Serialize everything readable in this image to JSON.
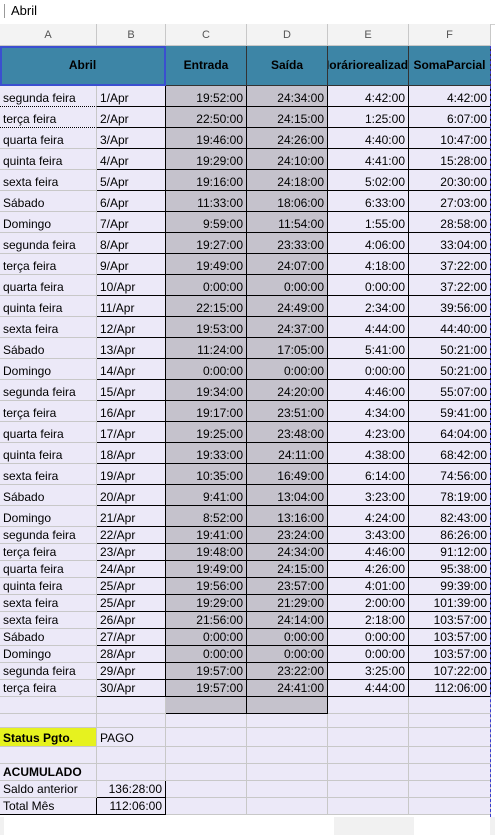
{
  "formula_bar": {
    "value": "Abril"
  },
  "column_headers": [
    "A",
    "B",
    "C",
    "D",
    "E",
    "F"
  ],
  "header": {
    "month": "Abril",
    "entrada": "Entrada",
    "saida": "Saída",
    "horario_line1": "Horário",
    "horario_line2": "realizado",
    "soma_line1": "Soma",
    "soma_line2": "Parcial"
  },
  "rows": [
    [
      "segunda feira",
      "1/Apr",
      "19:52:00",
      "24:34:00",
      "4:42:00",
      "4:42:00"
    ],
    [
      "terça feira",
      "2/Apr",
      "22:50:00",
      "24:15:00",
      "1:25:00",
      "6:07:00"
    ],
    [
      "quarta feira",
      "3/Apr",
      "19:46:00",
      "24:26:00",
      "4:40:00",
      "10:47:00"
    ],
    [
      "quinta feira",
      "4/Apr",
      "19:29:00",
      "24:10:00",
      "4:41:00",
      "15:28:00"
    ],
    [
      "sexta feira",
      "5/Apr",
      "19:16:00",
      "24:18:00",
      "5:02:00",
      "20:30:00"
    ],
    [
      "Sábado",
      "6/Apr",
      "11:33:00",
      "18:06:00",
      "6:33:00",
      "27:03:00"
    ],
    [
      "Domingo",
      "7/Apr",
      "9:59:00",
      "11:54:00",
      "1:55:00",
      "28:58:00"
    ],
    [
      "segunda feira",
      "8/Apr",
      "19:27:00",
      "23:33:00",
      "4:06:00",
      "33:04:00"
    ],
    [
      "terça feira",
      "9/Apr",
      "19:49:00",
      "24:07:00",
      "4:18:00",
      "37:22:00"
    ],
    [
      "quarta feira",
      "10/Apr",
      "0:00:00",
      "0:00:00",
      "0:00:00",
      "37:22:00"
    ],
    [
      "quinta feira",
      "11/Apr",
      "22:15:00",
      "24:49:00",
      "2:34:00",
      "39:56:00"
    ],
    [
      "sexta feira",
      "12/Apr",
      "19:53:00",
      "24:37:00",
      "4:44:00",
      "44:40:00"
    ],
    [
      "Sábado",
      "13/Apr",
      "11:24:00",
      "17:05:00",
      "5:41:00",
      "50:21:00"
    ],
    [
      "Domingo",
      "14/Apr",
      "0:00:00",
      "0:00:00",
      "0:00:00",
      "50:21:00"
    ],
    [
      "segunda feira",
      "15/Apr",
      "19:34:00",
      "24:20:00",
      "4:46:00",
      "55:07:00"
    ],
    [
      "terça feira",
      "16/Apr",
      "19:17:00",
      "23:51:00",
      "4:34:00",
      "59:41:00"
    ],
    [
      "quarta feira",
      "17/Apr",
      "19:25:00",
      "23:48:00",
      "4:23:00",
      "64:04:00"
    ],
    [
      "quinta feira",
      "18/Apr",
      "19:33:00",
      "24:11:00",
      "4:38:00",
      "68:42:00"
    ],
    [
      "sexta feira",
      "19/Apr",
      "10:35:00",
      "16:49:00",
      "6:14:00",
      "74:56:00"
    ],
    [
      "Sábado",
      "20/Apr",
      "9:41:00",
      "13:04:00",
      "3:23:00",
      "78:19:00"
    ],
    [
      "Domingo",
      "21/Apr",
      "8:52:00",
      "13:16:00",
      "4:24:00",
      "82:43:00"
    ],
    [
      "segunda feira",
      "22/Apr",
      "19:41:00",
      "23:24:00",
      "3:43:00",
      "86:26:00"
    ],
    [
      "terça feira",
      "23/Apr",
      "19:48:00",
      "24:34:00",
      "4:46:00",
      "91:12:00"
    ],
    [
      "quarta feira",
      "24/Apr",
      "19:49:00",
      "24:15:00",
      "4:26:00",
      "95:38:00"
    ],
    [
      "quinta feira",
      "25/Apr",
      "19:56:00",
      "23:57:00",
      "4:01:00",
      "99:39:00"
    ],
    [
      "sexta feira",
      "25/Apr",
      "19:29:00",
      "21:29:00",
      "2:00:00",
      "101:39:00"
    ],
    [
      "sexta feira",
      "26/Apr",
      "21:56:00",
      "24:14:00",
      "2:18:00",
      "103:57:00"
    ],
    [
      "Sábado",
      "27/Apr",
      "0:00:00",
      "0:00:00",
      "0:00:00",
      "103:57:00"
    ],
    [
      "Domingo",
      "28/Apr",
      "0:00:00",
      "0:00:00",
      "0:00:00",
      "103:57:00"
    ],
    [
      "segunda feira",
      "29/Apr",
      "19:57:00",
      "23:22:00",
      "3:25:00",
      "107:22:00"
    ],
    [
      "terça feira",
      "30/Apr",
      "19:57:00",
      "24:41:00",
      "4:44:00",
      "112:06:00"
    ]
  ],
  "status": {
    "label": "Status Pgto.",
    "value": "PAGO"
  },
  "acumulado": {
    "title": "ACUMULADO",
    "saldo_label": "Saldo anterior",
    "saldo_value": "136:28:00",
    "total_label": "Total Mês",
    "total_value": "112:06:00"
  },
  "colors": {
    "header_bg": "#3d85a6",
    "lavender": "#ece9f8",
    "gray_col": "#c5c2cc",
    "status_yellow": "#e6f21f",
    "selection": "#3b4fd0"
  }
}
